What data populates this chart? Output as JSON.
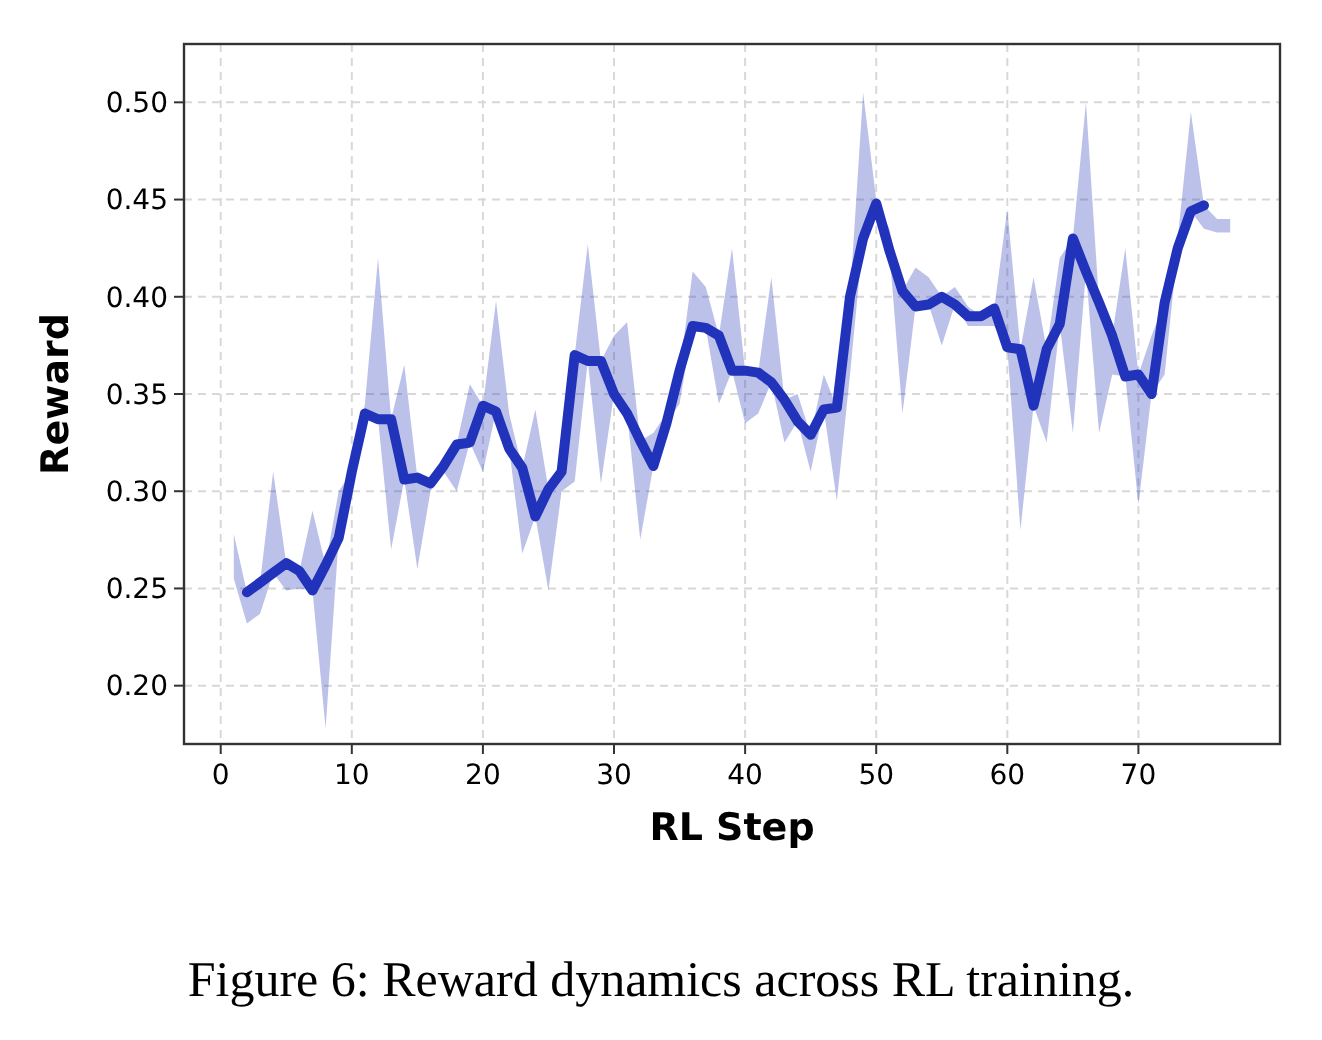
{
  "chart_data": {
    "type": "line",
    "xlabel": "RL Step",
    "ylabel": "Reward",
    "annotations": [
      "Figure 6: Reward dynamics across RL training."
    ],
    "xlim": [
      -2.8,
      80.8
    ],
    "xticks": [
      0,
      10,
      20,
      30,
      40,
      50,
      60,
      70
    ],
    "ylim": [
      0.17,
      0.53
    ],
    "yticks": [
      {
        "value": 0.2,
        "label": "0.20"
      },
      {
        "value": 0.25,
        "label": "0.25"
      },
      {
        "value": 0.3,
        "label": "0.30"
      },
      {
        "value": 0.35,
        "label": "0.35"
      },
      {
        "value": 0.4,
        "label": "0.40"
      },
      {
        "value": 0.45,
        "label": "0.45"
      },
      {
        "value": 0.5,
        "label": "0.50"
      }
    ],
    "grid": true,
    "line_style": "solid",
    "marker": "none",
    "series": [
      {
        "color": "#2233bb",
        "x": [
          1,
          2,
          3,
          4,
          5,
          6,
          7,
          8,
          9,
          10,
          11,
          12,
          13,
          14,
          15,
          16,
          17,
          18,
          19,
          20,
          21,
          22,
          23,
          24,
          25,
          26,
          27,
          28,
          29,
          30,
          31,
          32,
          33,
          34,
          35,
          36,
          37,
          38,
          39,
          40,
          41,
          42,
          43,
          44,
          45,
          46,
          47,
          48,
          49,
          50,
          51,
          52,
          53,
          54,
          55,
          56,
          57,
          58,
          59,
          60,
          61,
          62,
          63,
          64,
          65,
          66,
          67,
          68,
          69,
          70,
          71,
          72,
          73,
          74,
          75,
          76,
          77
        ],
        "values": [
          null,
          0.248,
          0.253,
          0.258,
          0.263,
          0.259,
          0.249,
          0.262,
          0.276,
          0.31,
          0.34,
          0.337,
          0.337,
          0.306,
          0.307,
          0.304,
          0.313,
          0.324,
          0.325,
          0.344,
          0.341,
          0.322,
          0.312,
          0.287,
          0.301,
          0.31,
          0.37,
          0.367,
          0.367,
          0.35,
          0.34,
          0.326,
          0.313,
          0.335,
          0.362,
          0.385,
          0.384,
          0.38,
          0.362,
          0.362,
          0.361,
          0.356,
          0.347,
          0.336,
          0.329,
          0.342,
          0.343,
          0.4,
          0.43,
          0.448,
          0.424,
          0.403,
          0.395,
          0.396,
          0.4,
          0.396,
          0.39,
          0.39,
          0.394,
          0.374,
          0.373,
          0.344,
          0.373,
          0.386,
          0.43,
          0.413,
          0.397,
          0.38,
          0.359,
          0.36,
          0.35,
          0.397,
          0.425,
          0.444,
          0.447,
          null,
          null
        ],
        "lower": [
          0.255,
          0.232,
          0.237,
          0.258,
          0.249,
          0.25,
          0.249,
          0.178,
          0.276,
          0.305,
          0.34,
          0.337,
          0.27,
          0.306,
          0.26,
          0.3,
          0.31,
          0.3,
          0.325,
          0.31,
          0.341,
          0.322,
          0.268,
          0.287,
          0.249,
          0.3,
          0.305,
          0.367,
          0.304,
          0.35,
          0.34,
          0.275,
          0.313,
          0.335,
          0.345,
          0.385,
          0.384,
          0.345,
          0.362,
          0.335,
          0.34,
          0.356,
          0.325,
          0.336,
          0.31,
          0.342,
          0.295,
          0.36,
          0.43,
          0.448,
          0.424,
          0.34,
          0.395,
          0.396,
          0.375,
          0.396,
          0.385,
          0.385,
          0.385,
          0.374,
          0.28,
          0.344,
          0.325,
          0.386,
          0.33,
          0.413,
          0.33,
          0.36,
          0.359,
          0.293,
          0.35,
          0.36,
          0.425,
          0.444,
          0.435,
          0.433,
          0.433
        ],
        "upper": [
          0.278,
          0.248,
          0.253,
          0.31,
          0.263,
          0.259,
          0.29,
          0.262,
          0.3,
          0.31,
          0.345,
          0.42,
          0.337,
          0.365,
          0.307,
          0.304,
          0.313,
          0.324,
          0.355,
          0.344,
          0.398,
          0.34,
          0.312,
          0.342,
          0.301,
          0.31,
          0.37,
          0.427,
          0.367,
          0.38,
          0.387,
          0.326,
          0.33,
          0.34,
          0.362,
          0.413,
          0.405,
          0.38,
          0.425,
          0.362,
          0.361,
          0.41,
          0.347,
          0.35,
          0.329,
          0.36,
          0.343,
          0.4,
          0.505,
          0.45,
          0.435,
          0.403,
          0.415,
          0.41,
          0.4,
          0.405,
          0.395,
          0.39,
          0.394,
          0.445,
          0.373,
          0.41,
          0.373,
          0.42,
          0.43,
          0.5,
          0.397,
          0.38,
          0.425,
          0.36,
          0.38,
          0.397,
          0.43,
          0.495,
          0.447,
          0.44,
          0.44
        ]
      }
    ]
  }
}
